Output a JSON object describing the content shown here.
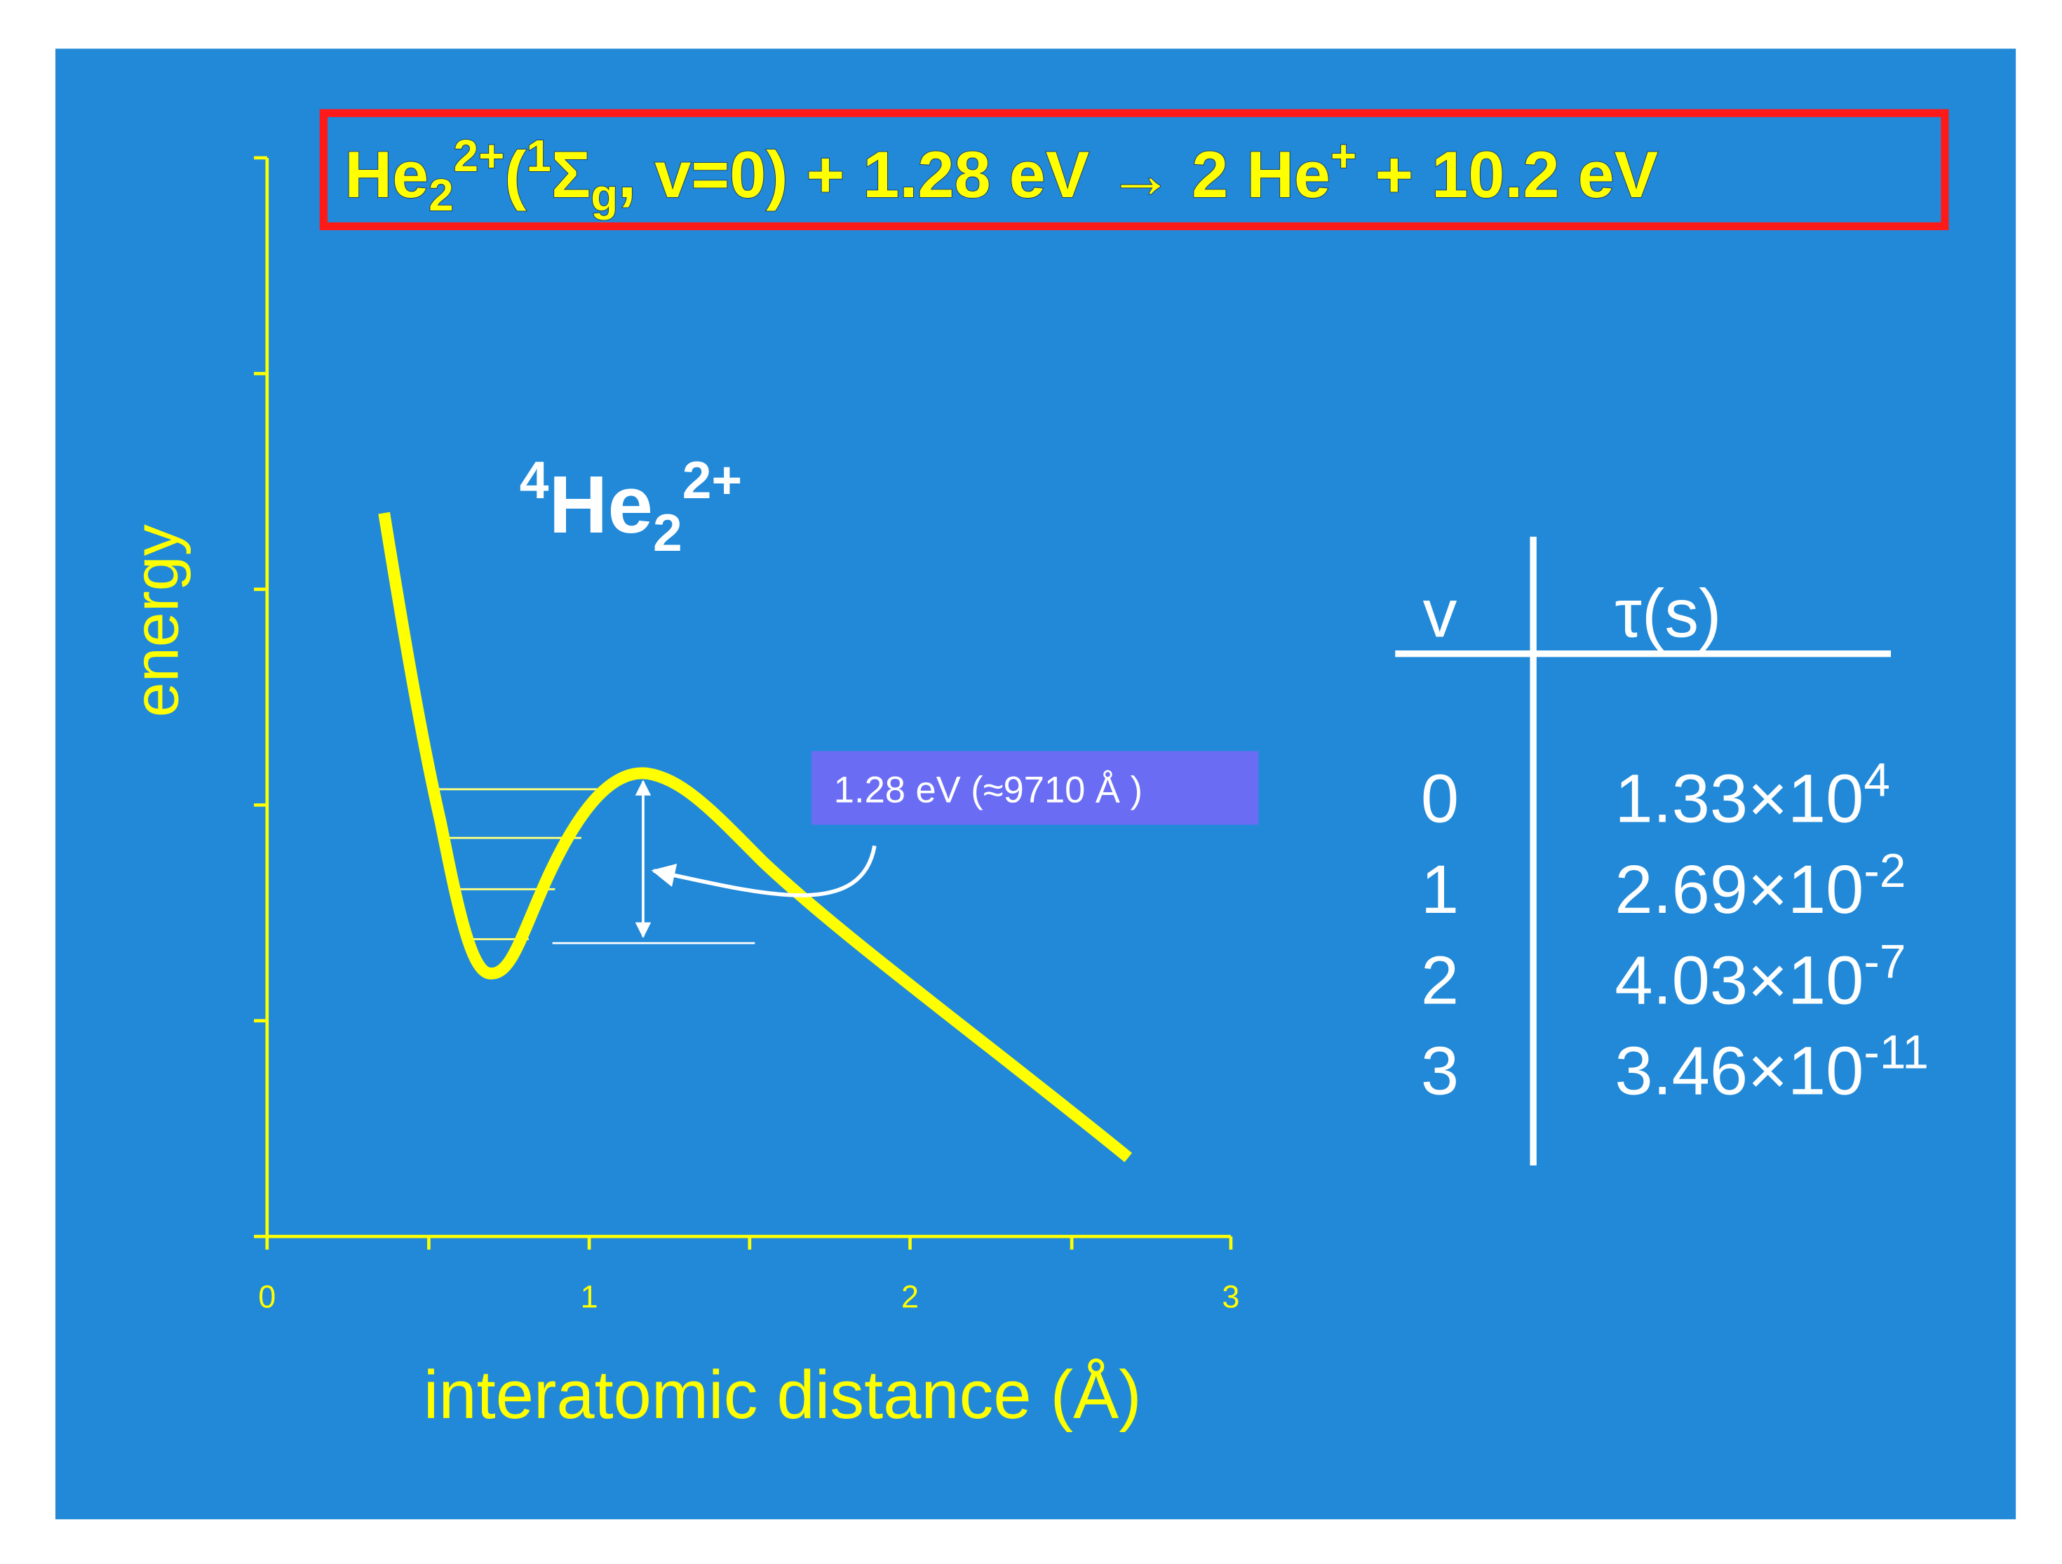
{
  "equation": [
    "He",
    "2",
    "2+",
    "(",
    "1",
    "Σ",
    "g",
    ", v=0) + 1.28 eV → 2 He",
    "+",
    " + 10.2 eV"
  ],
  "molecule": [
    "4",
    "He",
    "2",
    "2+"
  ],
  "y_axis_label": "energy",
  "x_axis_label": "interatomic distance (Å)",
  "x_tick_labels": [
    "0",
    "1",
    "2",
    "3"
  ],
  "annotation": "1.28 eV (≈9710 Å )",
  "table": {
    "header": [
      "v",
      "τ(s)"
    ],
    "rows": [
      [
        "0",
        "1.33×10",
        "4"
      ],
      [
        "1",
        "2.69×10",
        "-2"
      ],
      [
        "2",
        "4.03×10",
        "-7"
      ],
      [
        "3",
        "3.46×10",
        "-11"
      ]
    ]
  }
}
